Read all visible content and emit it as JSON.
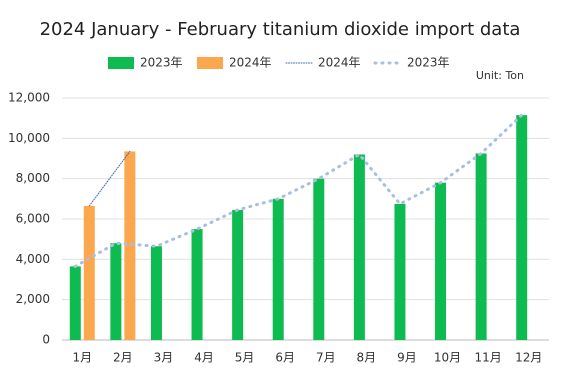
{
  "chart_data": {
    "type": "bar",
    "title": "2024 January - February titanium dioxide import data",
    "unit_label": "Unit: Ton",
    "categories": [
      "1月",
      "2月",
      "3月",
      "4月",
      "5月",
      "6月",
      "7月",
      "8月",
      "9月",
      "10月",
      "11月",
      "12月"
    ],
    "series": [
      {
        "name": "2023年",
        "type": "bar",
        "color": "#0dbb50",
        "values": [
          3650,
          4800,
          4650,
          5500,
          6450,
          7000,
          8000,
          9200,
          6750,
          7800,
          9250,
          11150
        ]
      },
      {
        "name": "2024年",
        "type": "bar",
        "color": "#fba74e",
        "values": [
          6650,
          9350,
          null,
          null,
          null,
          null,
          null,
          null,
          null,
          null,
          null,
          null
        ]
      },
      {
        "name": "2024年",
        "type": "line",
        "color": "#4169b8",
        "values": [
          6650,
          9350,
          null,
          null,
          null,
          null,
          null,
          null,
          null,
          null,
          null,
          null
        ]
      },
      {
        "name": "2023年",
        "type": "line",
        "color": "#a9bfe0",
        "values": [
          3650,
          4800,
          4650,
          5500,
          6450,
          7000,
          8000,
          9200,
          6750,
          7800,
          9250,
          11150
        ]
      }
    ],
    "ylim": [
      0,
      12000
    ],
    "yticks": [
      0,
      {
        "value": 2000,
        "label": "2,000"
      },
      {
        "value": 4000,
        "label": "4,000"
      },
      {
        "value": 6000,
        "label": "6,000"
      },
      {
        "value": 8000,
        "label": "8,000"
      },
      {
        "value": 10000,
        "label": "10,000"
      },
      {
        "value": 12000,
        "label": "12,000"
      }
    ],
    "grid": true
  }
}
